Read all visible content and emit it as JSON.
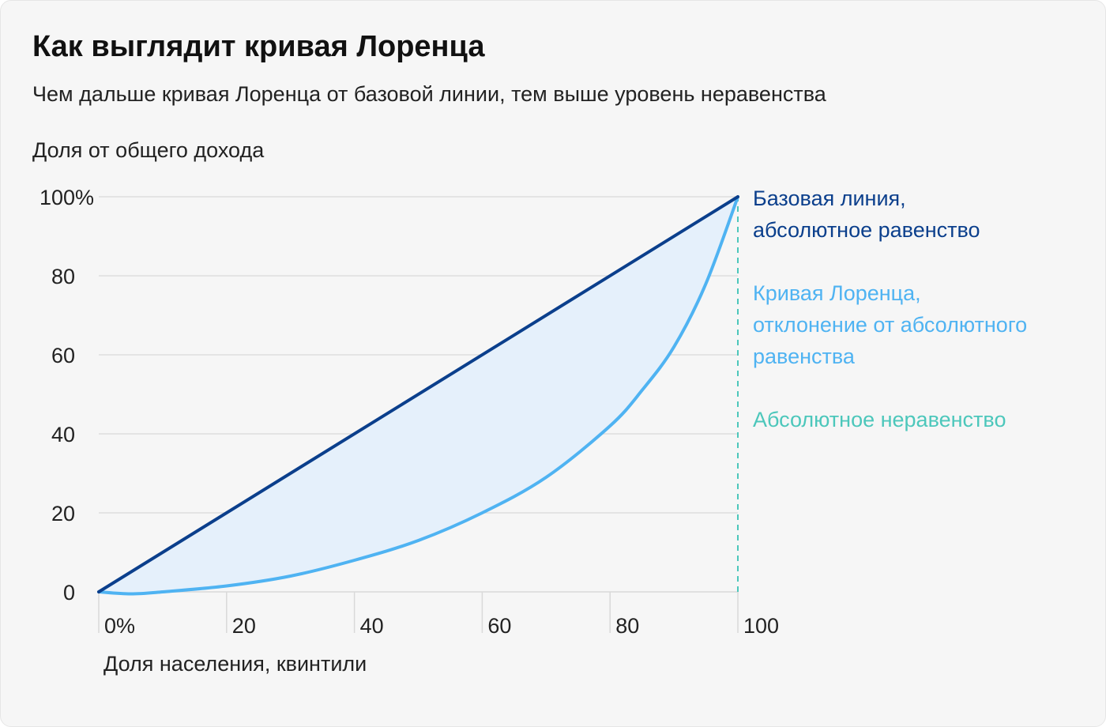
{
  "title": "Как выглядит кривая Лоренца",
  "subtitle": "Чем дальше кривая Лоренца от базовой линии, тем выше уровень неравенства",
  "colors": {
    "baseline": "#0b3f8c",
    "lorenz": "#4fb3f2",
    "inequality": "#4cc7bb",
    "fill": "#e5f0fb",
    "grid": "#d9d9d9"
  },
  "chart_data": {
    "type": "line",
    "xlabel": "Доля населения, квинтили",
    "ylabel": "Доля от общего дохода",
    "xlim": [
      0,
      100
    ],
    "ylim": [
      0,
      100
    ],
    "x_ticks": [
      "0%",
      "20",
      "40",
      "60",
      "80",
      "100"
    ],
    "y_ticks": [
      "0",
      "20",
      "40",
      "60",
      "80",
      "100%"
    ],
    "grid": true,
    "legend_position": "right",
    "series": [
      {
        "name": "Базовая линия, абсолютное равенство",
        "lines": [
          "Базовая линия,",
          "абсолютное равенство"
        ],
        "color": "#0b3f8c",
        "x": [
          0,
          100
        ],
        "y": [
          0,
          100
        ]
      },
      {
        "name": "Кривая Лоренца, отклонение от абсолютного равенства",
        "lines": [
          "Кривая Лоренца,",
          "отклонение от абсолютного",
          "равенства"
        ],
        "color": "#4fb3f2",
        "x": [
          0,
          5,
          10,
          20,
          30,
          40,
          50,
          60,
          70,
          80,
          85,
          90,
          95,
          100
        ],
        "y": [
          0,
          -0.5,
          0,
          1.5,
          4,
          8,
          13,
          20,
          29,
          42,
          51,
          62,
          78,
          100
        ]
      },
      {
        "name": "Абсолютное неравенство",
        "lines": [
          "Абсолютное неравенство"
        ],
        "color": "#4cc7bb",
        "dashed": true,
        "x": [
          100,
          100
        ],
        "y": [
          0,
          100
        ]
      }
    ]
  }
}
